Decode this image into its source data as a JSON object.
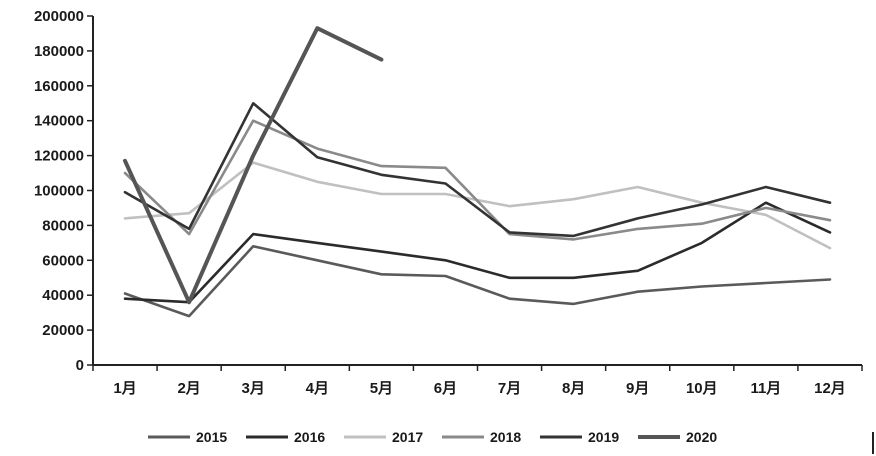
{
  "chart_data": {
    "type": "line",
    "title": "",
    "xlabel": "",
    "ylabel": "",
    "categories": [
      "1月",
      "2月",
      "3月",
      "4月",
      "5月",
      "6月",
      "7月",
      "8月",
      "9月",
      "10月",
      "11月",
      "12月"
    ],
    "ylim": [
      0,
      200000
    ],
    "yticks": [
      0,
      20000,
      40000,
      60000,
      80000,
      100000,
      120000,
      140000,
      160000,
      180000,
      200000
    ],
    "legend_position": "bottom",
    "grid": false,
    "series": [
      {
        "name": "2015",
        "color": "#5a5a5a",
        "values": [
          41000,
          28000,
          68000,
          60000,
          52000,
          51000,
          38000,
          35000,
          42000,
          45000,
          47000,
          49000
        ]
      },
      {
        "name": "2016",
        "color": "#2b2b2b",
        "values": [
          38000,
          36000,
          75000,
          70000,
          65000,
          60000,
          50000,
          50000,
          54000,
          70000,
          93000,
          76000
        ]
      },
      {
        "name": "2017",
        "color": "#c0c0c0",
        "values": [
          84000,
          87000,
          116000,
          105000,
          98000,
          98000,
          91000,
          95000,
          102000,
          93000,
          86000,
          67000
        ]
      },
      {
        "name": "2018",
        "color": "#8a8a8a",
        "values": [
          110000,
          75000,
          140000,
          124000,
          114000,
          113000,
          75000,
          72000,
          78000,
          81000,
          90000,
          83000
        ]
      },
      {
        "name": "2019",
        "color": "#333333",
        "values": [
          99000,
          78000,
          150000,
          119000,
          109000,
          104000,
          76000,
          74000,
          84000,
          92000,
          102000,
          93000
        ]
      },
      {
        "name": "2020",
        "color": "#555555",
        "values": [
          117000,
          36000,
          120000,
          193000,
          175000,
          null,
          null,
          null,
          null,
          null,
          null,
          null
        ]
      }
    ]
  }
}
